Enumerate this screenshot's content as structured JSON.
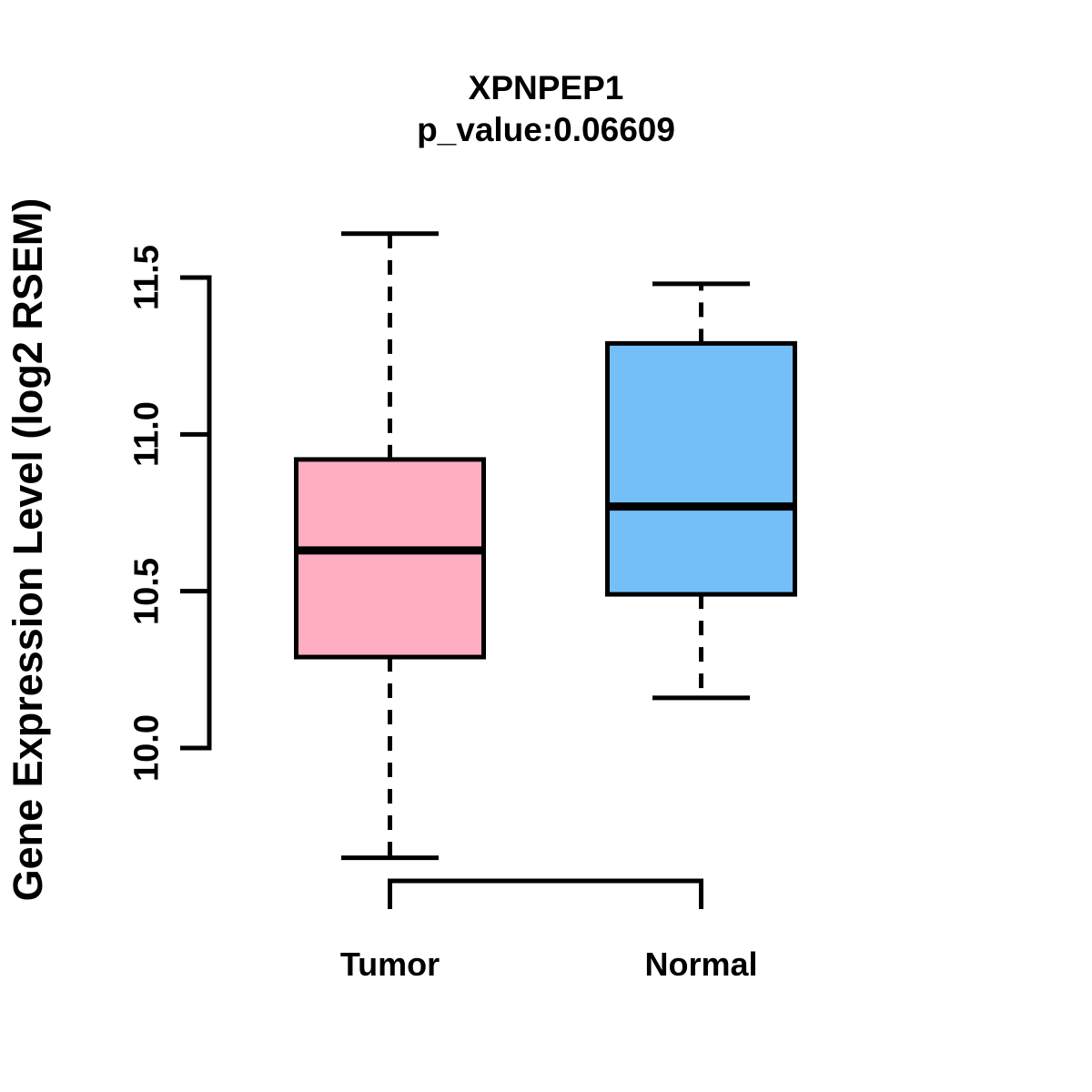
{
  "page": {
    "background": "#ffffff",
    "ink_color": "#000000"
  },
  "chart_data": {
    "type": "boxplot",
    "title": "XPNPEP1",
    "subtitle": "p_value:0.06609",
    "p_value": 0.06609,
    "gene": "XPNPEP1",
    "ylabel": "Gene Expression Level (log2 RSEM)",
    "xlabel": "",
    "categories": [
      "Tumor",
      "Normal"
    ],
    "y_axis": {
      "ticks": [
        10.0,
        10.5,
        11.0,
        11.5
      ],
      "tick_labels": [
        "10.0",
        "10.5",
        "11.0",
        "11.5"
      ],
      "axis_range_shown": [
        10.0,
        11.5
      ]
    },
    "grid": false,
    "legend": null,
    "whisker_style": "dashed",
    "groups": [
      {
        "name": "Tumor",
        "color": "#FFAEC1",
        "border_color": "#000000",
        "lower_whisker": 9.65,
        "q1": 10.29,
        "median": 10.63,
        "q3": 10.92,
        "upper_whisker": 11.64
      },
      {
        "name": "Normal",
        "color": "#74BFF7",
        "border_color": "#000000",
        "lower_whisker": 10.16,
        "q1": 10.49,
        "median": 10.77,
        "q3": 11.29,
        "upper_whisker": 11.48
      }
    ]
  }
}
